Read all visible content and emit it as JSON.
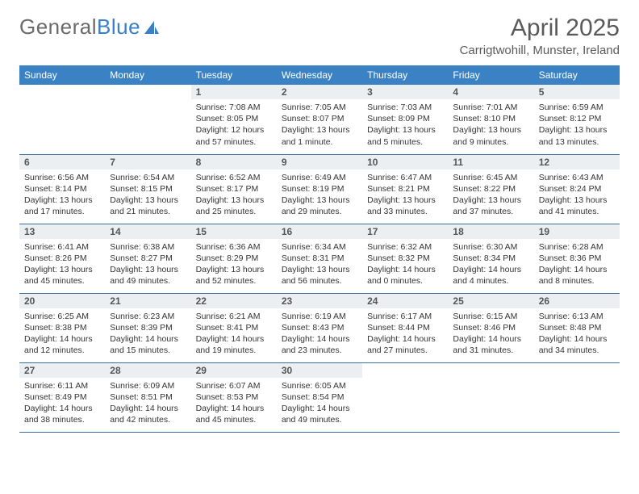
{
  "logo": {
    "text1": "General",
    "text2": "Blue"
  },
  "title": "April 2025",
  "location": "Carrigtwohill, Munster, Ireland",
  "colors": {
    "header_bg": "#3b82c4",
    "header_text": "#ffffff",
    "daynum_bg": "#eceff1",
    "row_border": "#3b6fa0",
    "body_text": "#333333",
    "title_text": "#5a5a5a"
  },
  "day_headers": [
    "Sunday",
    "Monday",
    "Tuesday",
    "Wednesday",
    "Thursday",
    "Friday",
    "Saturday"
  ],
  "weeks": [
    [
      null,
      null,
      {
        "n": "1",
        "sr": "7:08 AM",
        "ss": "8:05 PM",
        "dl": "12 hours and 57 minutes."
      },
      {
        "n": "2",
        "sr": "7:05 AM",
        "ss": "8:07 PM",
        "dl": "13 hours and 1 minute."
      },
      {
        "n": "3",
        "sr": "7:03 AM",
        "ss": "8:09 PM",
        "dl": "13 hours and 5 minutes."
      },
      {
        "n": "4",
        "sr": "7:01 AM",
        "ss": "8:10 PM",
        "dl": "13 hours and 9 minutes."
      },
      {
        "n": "5",
        "sr": "6:59 AM",
        "ss": "8:12 PM",
        "dl": "13 hours and 13 minutes."
      }
    ],
    [
      {
        "n": "6",
        "sr": "6:56 AM",
        "ss": "8:14 PM",
        "dl": "13 hours and 17 minutes."
      },
      {
        "n": "7",
        "sr": "6:54 AM",
        "ss": "8:15 PM",
        "dl": "13 hours and 21 minutes."
      },
      {
        "n": "8",
        "sr": "6:52 AM",
        "ss": "8:17 PM",
        "dl": "13 hours and 25 minutes."
      },
      {
        "n": "9",
        "sr": "6:49 AM",
        "ss": "8:19 PM",
        "dl": "13 hours and 29 minutes."
      },
      {
        "n": "10",
        "sr": "6:47 AM",
        "ss": "8:21 PM",
        "dl": "13 hours and 33 minutes."
      },
      {
        "n": "11",
        "sr": "6:45 AM",
        "ss": "8:22 PM",
        "dl": "13 hours and 37 minutes."
      },
      {
        "n": "12",
        "sr": "6:43 AM",
        "ss": "8:24 PM",
        "dl": "13 hours and 41 minutes."
      }
    ],
    [
      {
        "n": "13",
        "sr": "6:41 AM",
        "ss": "8:26 PM",
        "dl": "13 hours and 45 minutes."
      },
      {
        "n": "14",
        "sr": "6:38 AM",
        "ss": "8:27 PM",
        "dl": "13 hours and 49 minutes."
      },
      {
        "n": "15",
        "sr": "6:36 AM",
        "ss": "8:29 PM",
        "dl": "13 hours and 52 minutes."
      },
      {
        "n": "16",
        "sr": "6:34 AM",
        "ss": "8:31 PM",
        "dl": "13 hours and 56 minutes."
      },
      {
        "n": "17",
        "sr": "6:32 AM",
        "ss": "8:32 PM",
        "dl": "14 hours and 0 minutes."
      },
      {
        "n": "18",
        "sr": "6:30 AM",
        "ss": "8:34 PM",
        "dl": "14 hours and 4 minutes."
      },
      {
        "n": "19",
        "sr": "6:28 AM",
        "ss": "8:36 PM",
        "dl": "14 hours and 8 minutes."
      }
    ],
    [
      {
        "n": "20",
        "sr": "6:25 AM",
        "ss": "8:38 PM",
        "dl": "14 hours and 12 minutes."
      },
      {
        "n": "21",
        "sr": "6:23 AM",
        "ss": "8:39 PM",
        "dl": "14 hours and 15 minutes."
      },
      {
        "n": "22",
        "sr": "6:21 AM",
        "ss": "8:41 PM",
        "dl": "14 hours and 19 minutes."
      },
      {
        "n": "23",
        "sr": "6:19 AM",
        "ss": "8:43 PM",
        "dl": "14 hours and 23 minutes."
      },
      {
        "n": "24",
        "sr": "6:17 AM",
        "ss": "8:44 PM",
        "dl": "14 hours and 27 minutes."
      },
      {
        "n": "25",
        "sr": "6:15 AM",
        "ss": "8:46 PM",
        "dl": "14 hours and 31 minutes."
      },
      {
        "n": "26",
        "sr": "6:13 AM",
        "ss": "8:48 PM",
        "dl": "14 hours and 34 minutes."
      }
    ],
    [
      {
        "n": "27",
        "sr": "6:11 AM",
        "ss": "8:49 PM",
        "dl": "14 hours and 38 minutes."
      },
      {
        "n": "28",
        "sr": "6:09 AM",
        "ss": "8:51 PM",
        "dl": "14 hours and 42 minutes."
      },
      {
        "n": "29",
        "sr": "6:07 AM",
        "ss": "8:53 PM",
        "dl": "14 hours and 45 minutes."
      },
      {
        "n": "30",
        "sr": "6:05 AM",
        "ss": "8:54 PM",
        "dl": "14 hours and 49 minutes."
      },
      null,
      null,
      null
    ]
  ],
  "labels": {
    "sunrise": "Sunrise: ",
    "sunset": "Sunset: ",
    "daylight": "Daylight: "
  }
}
